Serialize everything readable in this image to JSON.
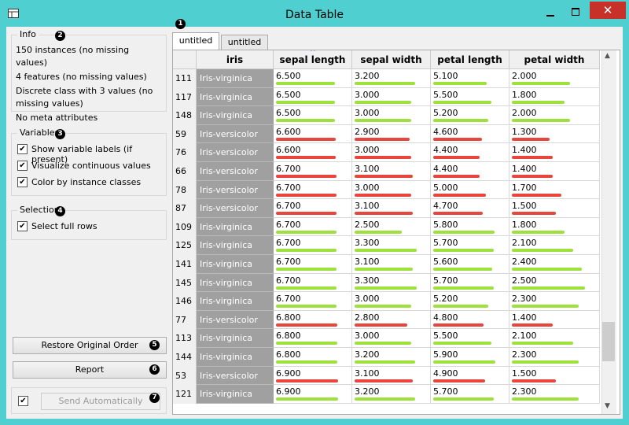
{
  "window": {
    "title": "Data Table"
  },
  "info": {
    "title": "Info",
    "marker": "2",
    "lines": [
      "150 instances (no missing values)",
      "4 features (no missing values)",
      "Discrete class with 3 values (no missing values)",
      "No meta attributes"
    ]
  },
  "variables": {
    "title": "Variables",
    "marker": "3",
    "options": [
      "Show variable labels (if present)",
      "Visualize continuous values",
      "Color by instance classes"
    ]
  },
  "selection": {
    "title": "Selection",
    "marker": "4",
    "options": [
      "Select full rows"
    ]
  },
  "buttons": {
    "restore": "Restore Original Order",
    "restore_marker": "5",
    "report": "Report",
    "report_marker": "6",
    "send": "Send Automatically",
    "send_marker": "7"
  },
  "tabs": {
    "items": [
      "untitled",
      "untitled"
    ],
    "marker": "1"
  },
  "table": {
    "columns": [
      "iris",
      "sepal length",
      "sepal width",
      "petal length",
      "petal width"
    ],
    "rows": [
      {
        "id": "111",
        "class": "Iris-virginica",
        "color": "#9ee03c",
        "values": [
          "6.500",
          "3.200",
          "5.100",
          "2.000"
        ]
      },
      {
        "id": "117",
        "class": "Iris-virginica",
        "color": "#9ee03c",
        "values": [
          "6.500",
          "3.000",
          "5.500",
          "1.800"
        ]
      },
      {
        "id": "148",
        "class": "Iris-virginica",
        "color": "#9ee03c",
        "values": [
          "6.500",
          "3.000",
          "5.200",
          "2.000"
        ]
      },
      {
        "id": "59",
        "class": "Iris-versicolor",
        "color": "#e8463c",
        "values": [
          "6.600",
          "2.900",
          "4.600",
          "1.300"
        ]
      },
      {
        "id": "76",
        "class": "Iris-versicolor",
        "color": "#e8463c",
        "values": [
          "6.600",
          "3.000",
          "4.400",
          "1.400"
        ]
      },
      {
        "id": "66",
        "class": "Iris-versicolor",
        "color": "#e8463c",
        "values": [
          "6.700",
          "3.100",
          "4.400",
          "1.400"
        ]
      },
      {
        "id": "78",
        "class": "Iris-versicolor",
        "color": "#e8463c",
        "values": [
          "6.700",
          "3.000",
          "5.000",
          "1.700"
        ]
      },
      {
        "id": "87",
        "class": "Iris-versicolor",
        "color": "#e8463c",
        "values": [
          "6.700",
          "3.100",
          "4.700",
          "1.500"
        ]
      },
      {
        "id": "109",
        "class": "Iris-virginica",
        "color": "#9ee03c",
        "values": [
          "6.700",
          "2.500",
          "5.800",
          "1.800"
        ]
      },
      {
        "id": "125",
        "class": "Iris-virginica",
        "color": "#9ee03c",
        "values": [
          "6.700",
          "3.300",
          "5.700",
          "2.100"
        ]
      },
      {
        "id": "141",
        "class": "Iris-virginica",
        "color": "#9ee03c",
        "values": [
          "6.700",
          "3.100",
          "5.600",
          "2.400"
        ]
      },
      {
        "id": "145",
        "class": "Iris-virginica",
        "color": "#9ee03c",
        "values": [
          "6.700",
          "3.300",
          "5.700",
          "2.500"
        ]
      },
      {
        "id": "146",
        "class": "Iris-virginica",
        "color": "#9ee03c",
        "values": [
          "6.700",
          "3.000",
          "5.200",
          "2.300"
        ]
      },
      {
        "id": "77",
        "class": "Iris-versicolor",
        "color": "#e8463c",
        "values": [
          "6.800",
          "2.800",
          "4.800",
          "1.400"
        ]
      },
      {
        "id": "113",
        "class": "Iris-virginica",
        "color": "#9ee03c",
        "values": [
          "6.800",
          "3.000",
          "5.500",
          "2.100"
        ]
      },
      {
        "id": "144",
        "class": "Iris-virginica",
        "color": "#9ee03c",
        "values": [
          "6.800",
          "3.200",
          "5.900",
          "2.300"
        ]
      },
      {
        "id": "53",
        "class": "Iris-versicolor",
        "color": "#e8463c",
        "values": [
          "6.900",
          "3.100",
          "4.900",
          "1.500"
        ]
      },
      {
        "id": "121",
        "class": "Iris-virginica",
        "color": "#9ee03c",
        "values": [
          "6.900",
          "3.200",
          "5.700",
          "2.300"
        ]
      }
    ]
  }
}
